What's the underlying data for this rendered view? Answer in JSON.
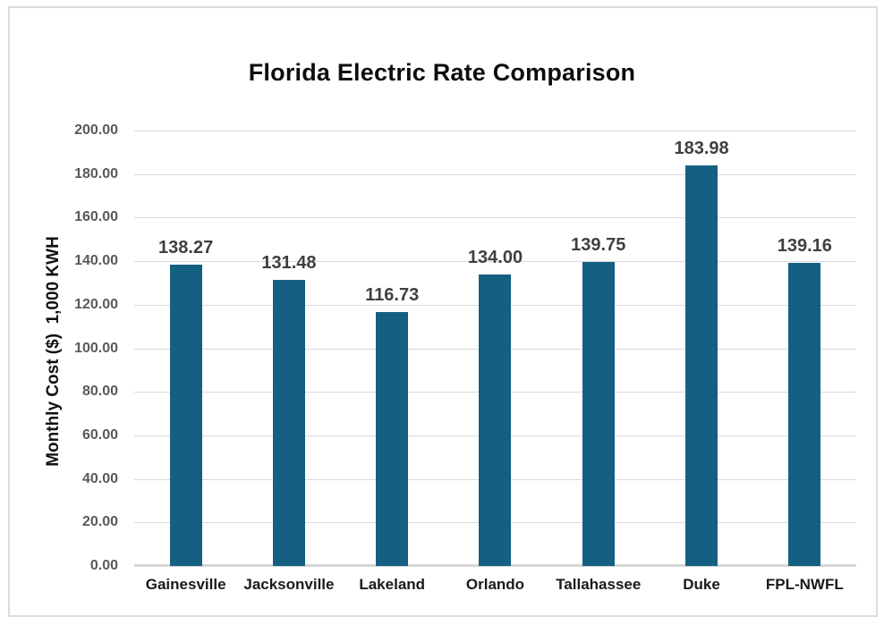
{
  "chart_data": {
    "type": "bar",
    "title": "Florida Electric Rate Comparison",
    "ylabel": "Monthly Cost ($)  1,000 KWH",
    "xlabel": "",
    "categories": [
      "Gainesville",
      "Jacksonville",
      "Lakeland",
      "Orlando",
      "Tallahassee",
      "Duke",
      "FPL-NWFL"
    ],
    "values": [
      138.27,
      131.48,
      116.73,
      134.0,
      139.75,
      183.98,
      139.16
    ],
    "value_labels": [
      "138.27",
      "131.48",
      "116.73",
      "134.00",
      "139.75",
      "183.98",
      "139.16"
    ],
    "ylim": [
      0,
      200
    ],
    "ytick_step": 20,
    "ytick_labels": [
      "200.00",
      "180.00",
      "160.00",
      "140.00",
      "120.00",
      "100.00",
      "80.00",
      "60.00",
      "40.00",
      "20.00",
      "0.00"
    ],
    "grid": "horizontal",
    "legend": "none",
    "colors": {
      "bar": "#156082",
      "gridline": "#d9d9d9",
      "baseline": "#d6d6d6",
      "tick_label": "#595959",
      "value_label": "#404040",
      "category_label": "#1a1a1a",
      "title": "#0d0d0d",
      "frame_border": "#dcdcdc",
      "background": "#ffffff"
    }
  }
}
